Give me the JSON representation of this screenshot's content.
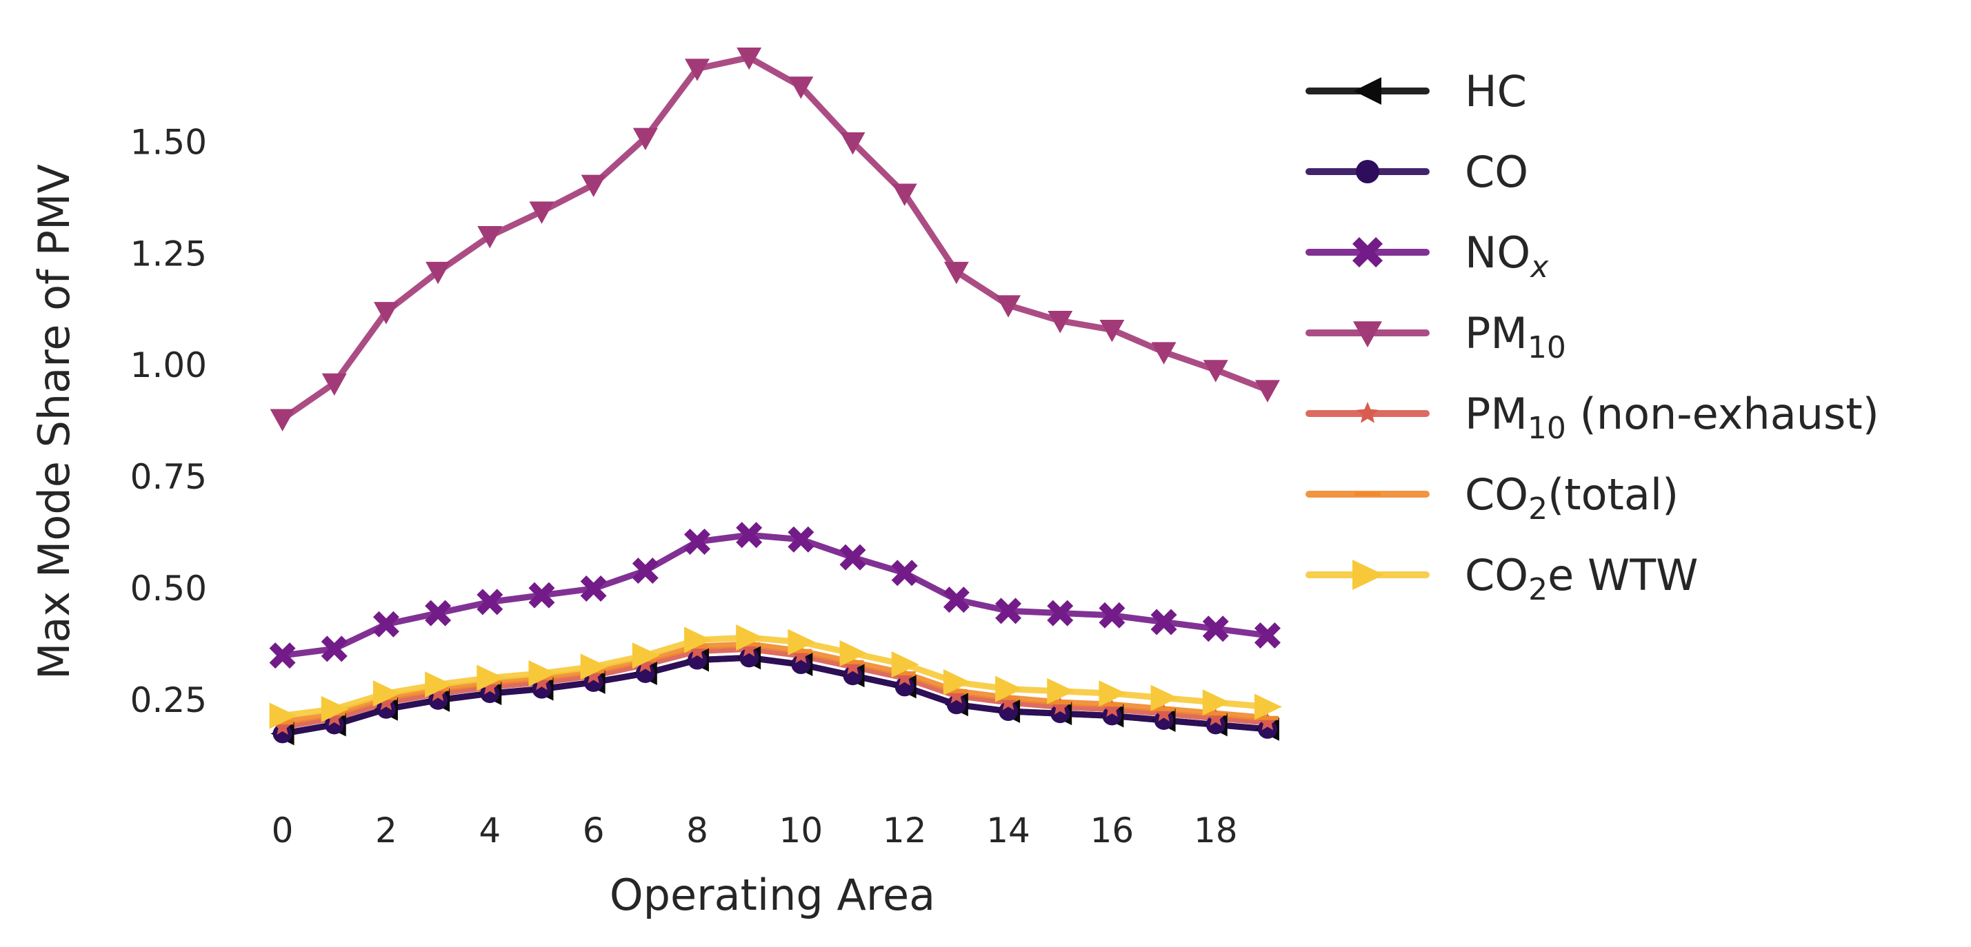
{
  "chart_data": {
    "type": "line",
    "title": "",
    "xlabel": "Operating Area",
    "ylabel": "Max Mode Share of PMV",
    "x": [
      0,
      1,
      2,
      3,
      4,
      5,
      6,
      7,
      8,
      9,
      10,
      11,
      12,
      13,
      14,
      15,
      16,
      17,
      18,
      19
    ],
    "xlim": [
      -0.5,
      19.4
    ],
    "ylim": [
      0.12,
      1.72
    ],
    "xticks": [
      0,
      2,
      4,
      6,
      8,
      10,
      12,
      14,
      16,
      18
    ],
    "xtick_labels": [
      "0",
      "2",
      "4",
      "6",
      "8",
      "10",
      "12",
      "14",
      "16",
      "18"
    ],
    "yticks": [
      0.25,
      0.5,
      0.75,
      1.0,
      1.25,
      1.5
    ],
    "ytick_labels": [
      "0.25",
      "0.50",
      "0.75",
      "1.00",
      "1.25",
      "1.50"
    ],
    "grid": false,
    "legend_position": "outside-right",
    "series": [
      {
        "name": "HC",
        "label_main": "HC",
        "label_sub": "",
        "label_tail": "",
        "sub_italic": false,
        "color": "#0b0b0b",
        "marker": "triangle-left",
        "values": [
          0.175,
          0.195,
          0.23,
          0.25,
          0.265,
          0.275,
          0.29,
          0.31,
          0.34,
          0.345,
          0.33,
          0.305,
          0.28,
          0.24,
          0.225,
          0.22,
          0.215,
          0.205,
          0.195,
          0.185
        ]
      },
      {
        "name": "CO",
        "label_main": "CO",
        "label_sub": "",
        "label_tail": "",
        "sub_italic": false,
        "color": "#2e0d5c",
        "marker": "circle",
        "values": [
          0.175,
          0.195,
          0.23,
          0.25,
          0.265,
          0.275,
          0.29,
          0.31,
          0.34,
          0.345,
          0.33,
          0.305,
          0.28,
          0.24,
          0.225,
          0.22,
          0.215,
          0.205,
          0.195,
          0.185
        ]
      },
      {
        "name": "NOx",
        "label_main": "NO",
        "label_sub": "x",
        "label_tail": "",
        "sub_italic": true,
        "color": "#731b88",
        "marker": "x-filled",
        "values": [
          0.35,
          0.365,
          0.42,
          0.445,
          0.47,
          0.485,
          0.5,
          0.54,
          0.605,
          0.62,
          0.61,
          0.57,
          0.535,
          0.475,
          0.45,
          0.445,
          0.44,
          0.425,
          0.41,
          0.395
        ]
      },
      {
        "name": "PM10",
        "label_main": "PM",
        "label_sub": "10",
        "label_tail": "",
        "sub_italic": false,
        "color": "#a23a77",
        "marker": "triangle-down",
        "values": [
          0.88,
          0.96,
          1.12,
          1.21,
          1.29,
          1.345,
          1.405,
          1.51,
          1.665,
          1.69,
          1.625,
          1.5,
          1.385,
          1.21,
          1.135,
          1.1,
          1.08,
          1.03,
          0.99,
          0.945
        ]
      },
      {
        "name": "PM10 (non-exhaust)",
        "label_main": "PM",
        "label_sub": "10",
        "label_tail": " (non-exhaust)",
        "sub_italic": false,
        "color": "#d95c50",
        "marker": "star",
        "values": [
          0.19,
          0.21,
          0.245,
          0.265,
          0.28,
          0.29,
          0.305,
          0.33,
          0.36,
          0.365,
          0.35,
          0.325,
          0.3,
          0.26,
          0.245,
          0.235,
          0.23,
          0.22,
          0.21,
          0.2
        ]
      },
      {
        "name": "CO2(total)",
        "label_main": "CO",
        "label_sub": "2",
        "label_tail": "(total)",
        "sub_italic": false,
        "color": "#f08a2e",
        "marker": "hline",
        "values": [
          0.2,
          0.22,
          0.255,
          0.275,
          0.29,
          0.3,
          0.315,
          0.34,
          0.37,
          0.375,
          0.36,
          0.335,
          0.31,
          0.27,
          0.255,
          0.245,
          0.24,
          0.23,
          0.22,
          0.21
        ]
      },
      {
        "name": "CO2e WTW",
        "label_main": "CO",
        "label_sub": "2",
        "label_tail": "e WTW",
        "sub_italic": false,
        "color": "#f7c93a",
        "marker": "triangle-right",
        "values": [
          0.215,
          0.23,
          0.265,
          0.285,
          0.3,
          0.31,
          0.325,
          0.35,
          0.385,
          0.39,
          0.38,
          0.355,
          0.33,
          0.29,
          0.275,
          0.27,
          0.265,
          0.255,
          0.245,
          0.235
        ]
      }
    ]
  }
}
